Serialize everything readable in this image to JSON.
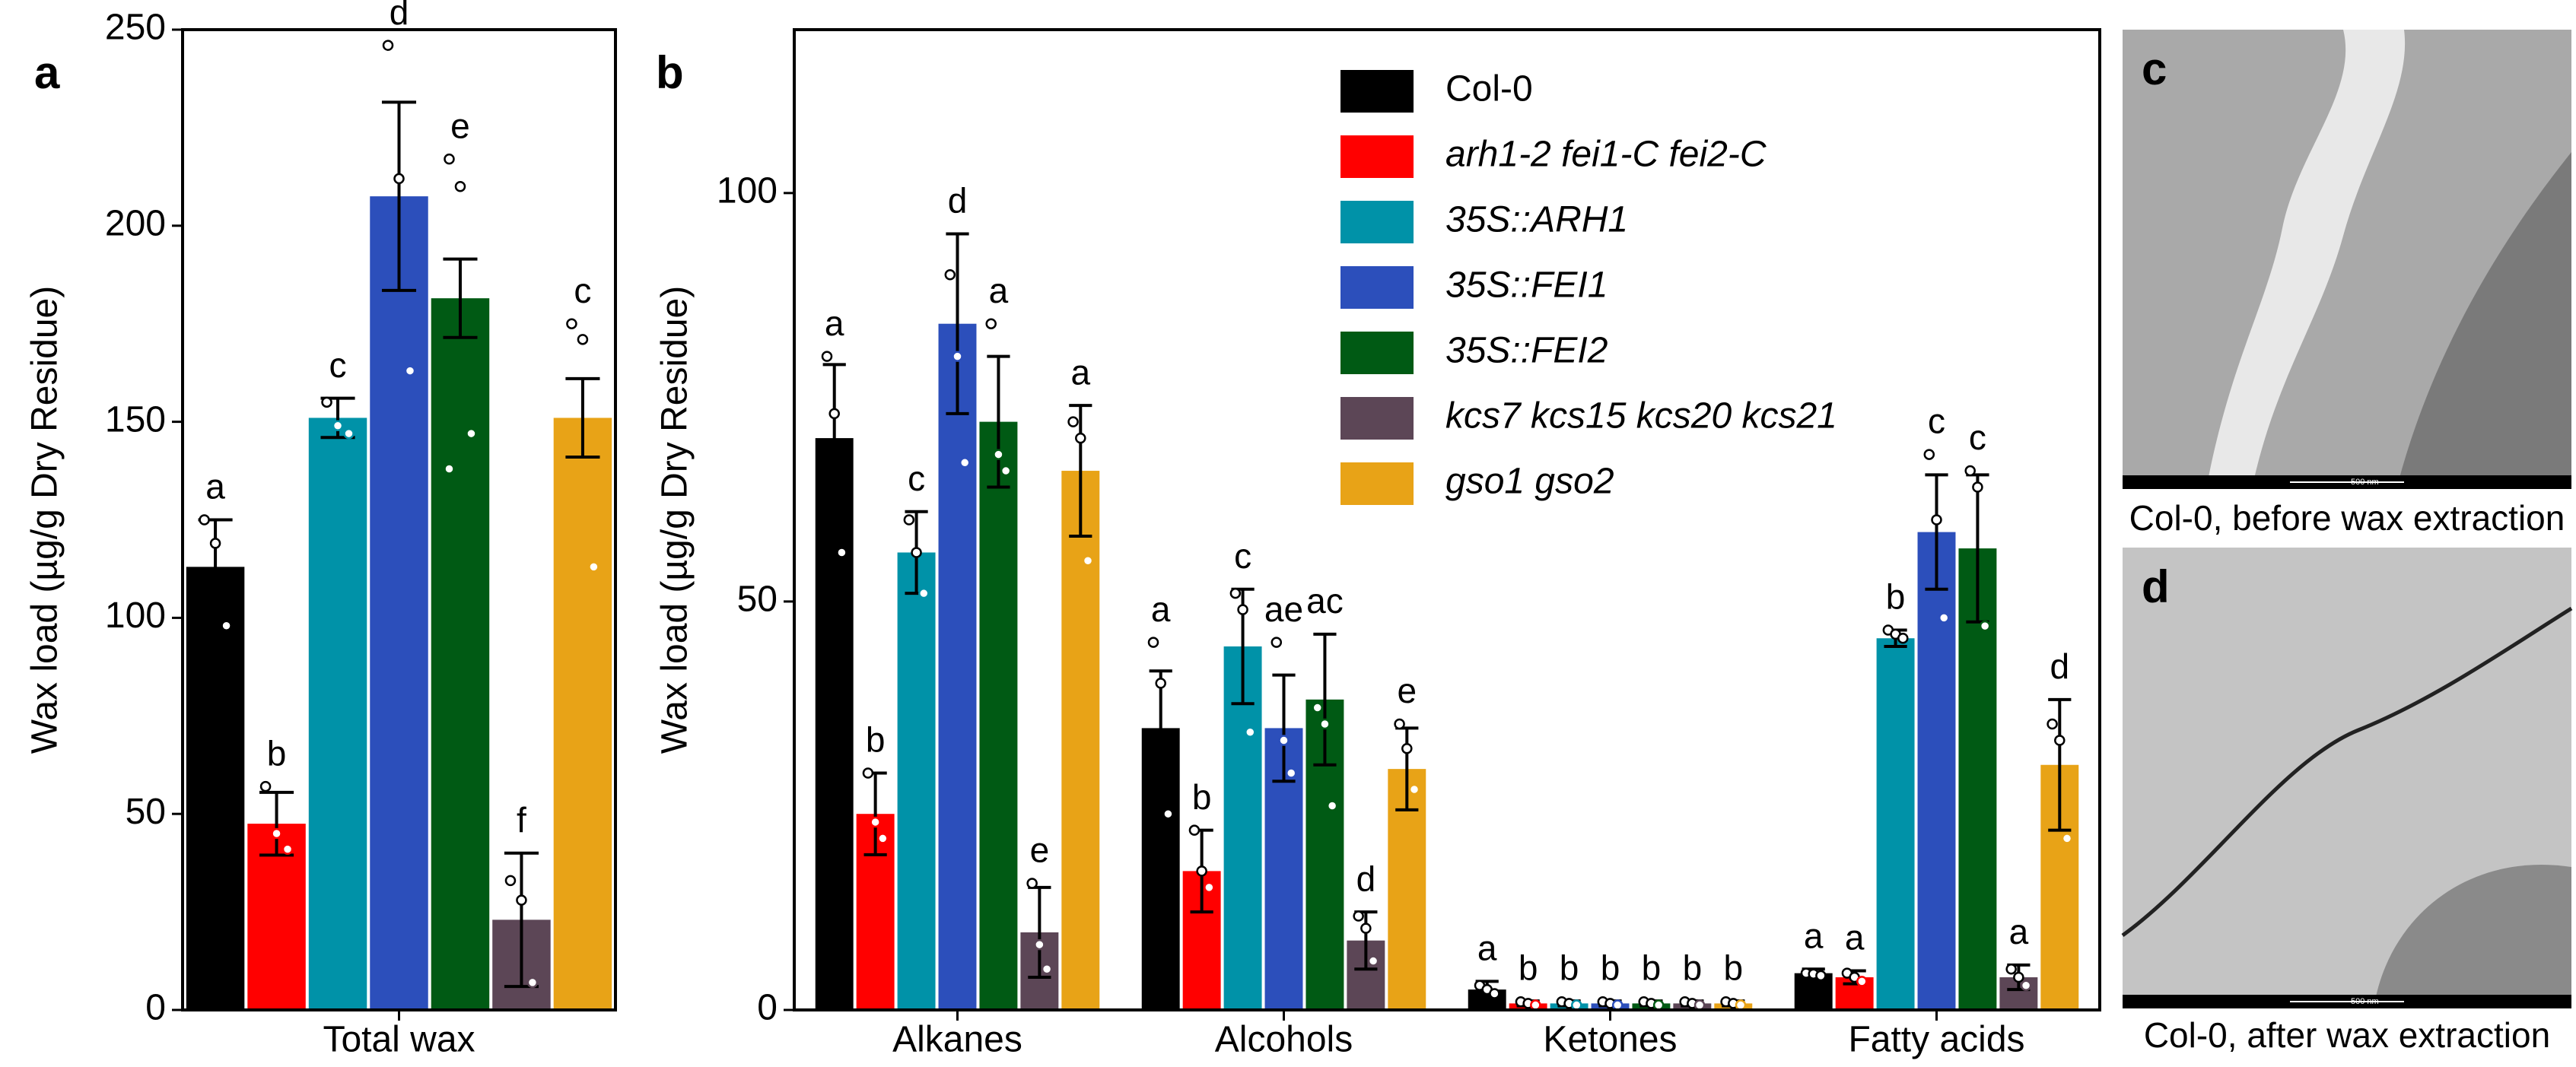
{
  "chart_data": [
    {
      "type": "bar",
      "panel": "a",
      "ylabel": "Wax load  (µg/g Dry Residue)",
      "categories": [
        "Total wax"
      ],
      "ylim": [
        0,
        250
      ],
      "yticks": [
        0,
        50,
        100,
        150,
        200,
        250
      ],
      "series": [
        {
          "color": "#000000",
          "values": [
            113
          ],
          "errors": [
            12
          ],
          "labels": [
            "a"
          ],
          "points": [
            [
              125,
              119,
              98
            ]
          ]
        },
        {
          "color": "#ff0000",
          "values": [
            47.5
          ],
          "errors": [
            8
          ],
          "labels": [
            "b"
          ],
          "points": [
            [
              57,
              45,
              41
            ]
          ]
        },
        {
          "color": "#0092a8",
          "values": [
            151
          ],
          "errors": [
            5
          ],
          "labels": [
            "c"
          ],
          "points": [
            [
              155,
              149,
              147
            ]
          ]
        },
        {
          "color": "#2c4fbb",
          "values": [
            207.5
          ],
          "errors": [
            24
          ],
          "labels": [
            "d"
          ],
          "points": [
            [
              246,
              212,
              163
            ]
          ]
        },
        {
          "color": "#005a14",
          "values": [
            181.5
          ],
          "errors": [
            10
          ],
          "labels": [
            "e"
          ],
          "points": [
            [
              217,
              210,
              147,
              138
            ]
          ]
        },
        {
          "color": "#5c4656",
          "values": [
            23
          ],
          "errors": [
            17
          ],
          "labels": [
            "f"
          ],
          "points": [
            [
              33,
              28,
              7
            ]
          ]
        },
        {
          "color": "#e8a317",
          "values": [
            151
          ],
          "errors": [
            10
          ],
          "labels": [
            "c"
          ],
          "points": [
            [
              175,
              171,
              113
            ]
          ]
        }
      ]
    },
    {
      "type": "bar",
      "panel": "b",
      "ylabel": "Wax load  (µg/g Dry Residue)",
      "categories": [
        "Alkanes",
        "Alcohols",
        "Ketones",
        "Fatty acids"
      ],
      "ylim": [
        0,
        120
      ],
      "yticks": [
        0,
        50,
        100
      ],
      "series": [
        {
          "name": "Col-0",
          "color": "#000000",
          "values": [
            70,
            34.5,
            2.5,
            4.5
          ],
          "errors": [
            9,
            7,
            1,
            0.5
          ],
          "labels": [
            "a",
            "a",
            "a",
            "a"
          ],
          "points": [
            [
              80,
              73,
              56
            ],
            [
              45,
              40,
              24
            ],
            [
              3,
              2.5,
              2
            ],
            [
              4.5,
              4.4,
              4.2
            ]
          ]
        },
        {
          "name": "arh1-2 fei1-C fei2-C",
          "color": "#ff0000",
          "values": [
            24,
            17,
            0.8,
            4
          ],
          "errors": [
            5,
            5,
            0.3,
            0.8
          ],
          "labels": [
            "b",
            "b",
            "b",
            "a"
          ],
          "points": [
            [
              29,
              23,
              21
            ],
            [
              22,
              17,
              15
            ],
            [
              1,
              0.8,
              0.6
            ],
            [
              4.5,
              4,
              3.5
            ]
          ]
        },
        {
          "name": "35S::ARH1",
          "color": "#0092a8",
          "values": [
            56,
            44.5,
            0.8,
            45.5
          ],
          "errors": [
            5,
            7,
            0.3,
            1
          ],
          "labels": [
            "c",
            "c",
            "b",
            "b"
          ],
          "points": [
            [
              60,
              56,
              51
            ],
            [
              51,
              49,
              34
            ],
            [
              1,
              0.8,
              0.6
            ],
            [
              46.5,
              46,
              45.5
            ]
          ]
        },
        {
          "name": "35S::FEI1",
          "color": "#2c4fbb",
          "values": [
            84,
            34.5,
            0.8,
            58.5
          ],
          "errors": [
            11,
            6.5,
            0.3,
            7
          ],
          "labels": [
            "d",
            "ae",
            "b",
            "c"
          ],
          "points": [
            [
              90,
              80,
              67
            ],
            [
              45,
              33,
              29
            ],
            [
              1,
              0.8,
              0.6
            ],
            [
              68,
              60,
              48
            ]
          ]
        },
        {
          "name": "35S::FEI2",
          "color": "#005a14",
          "values": [
            72,
            38,
            0.8,
            56.5
          ],
          "errors": [
            8,
            8,
            0.3,
            9
          ],
          "labels": [
            "a",
            "ac",
            "b",
            "c"
          ],
          "points": [
            [
              84,
              68,
              66
            ],
            [
              37,
              35,
              25
            ],
            [
              1,
              0.8,
              0.6
            ],
            [
              66,
              64,
              47
            ]
          ]
        },
        {
          "name": "kcs7 kcs15 kcs20 kcs21",
          "color": "#5c4656",
          "values": [
            9.5,
            8.5,
            0.8,
            4
          ],
          "errors": [
            5.5,
            3.5,
            0.3,
            1.5
          ],
          "labels": [
            "e",
            "d",
            "b",
            "a"
          ],
          "points": [
            [
              15.5,
              8,
              5
            ],
            [
              11.5,
              10,
              6
            ],
            [
              1,
              0.8,
              0.6
            ],
            [
              5,
              4,
              3
            ]
          ]
        },
        {
          "name": "gso1 gso2",
          "color": "#e8a317",
          "values": [
            66,
            29.5,
            0.8,
            30
          ],
          "errors": [
            8,
            5,
            0.3,
            8
          ],
          "labels": [
            "a",
            "e",
            "b",
            "d"
          ],
          "points": [
            [
              72,
              70,
              55
            ],
            [
              35,
              32,
              27
            ],
            [
              1,
              0.8,
              0.6
            ],
            [
              35,
              33,
              21
            ]
          ]
        }
      ]
    }
  ],
  "images": [
    {
      "panel": "c",
      "caption": "Col-0, before wax extraction",
      "scale": "500 nm"
    },
    {
      "panel": "d",
      "caption": "Col-0, after wax extraction",
      "scale": "500 nm"
    }
  ]
}
